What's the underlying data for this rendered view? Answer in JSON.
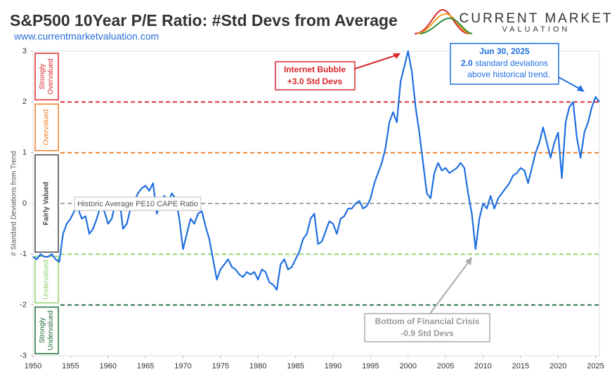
{
  "chart_data": {
    "type": "line",
    "title": "S&P500 10Year P/E Ratio: #Std Devs from Average",
    "subtitle": "www.currentmarketvaluation.com",
    "logo": {
      "line1": "CURRENT MARKET",
      "line2": "VALUATION"
    },
    "y_label": "# Standard Deviations from Trend",
    "xlim": [
      1950,
      2025.5
    ],
    "ylim": [
      -3,
      3
    ],
    "xticks": [
      1950,
      1955,
      1960,
      1965,
      1970,
      1975,
      1980,
      1985,
      1990,
      1995,
      2000,
      2005,
      2010,
      2015,
      2020,
      2025
    ],
    "yticks": [
      -3,
      -2,
      -1,
      0,
      1,
      2,
      3
    ],
    "reference_lines": [
      {
        "value": 2,
        "color": "#d9262b"
      },
      {
        "value": 1,
        "color": "#f07c22"
      },
      {
        "value": 0,
        "color": "#9a9a9a"
      },
      {
        "value": -1,
        "color": "#8fd16a"
      },
      {
        "value": -2,
        "color": "#1e6b3a"
      }
    ],
    "bands": [
      {
        "label": "Strongly Overvalued",
        "range": [
          3,
          2
        ],
        "color": "#d9262b"
      },
      {
        "label": "Overvalued",
        "range": [
          2,
          1
        ],
        "color": "#f07c22"
      },
      {
        "label": "Fairly Valued",
        "range": [
          1,
          -1
        ],
        "color": "#444444"
      },
      {
        "label": "Undervalued",
        "range": [
          -1,
          -2
        ],
        "color": "#8fd16a"
      },
      {
        "label": "Strongly Undervalued",
        "range": [
          -2,
          -3
        ],
        "color": "#1e6b3a"
      }
    ],
    "annotations": {
      "average": "Historic Average PE10 CAPE Ratio",
      "bubble": [
        "Internet Bubble",
        "+3.0 Std Devs"
      ],
      "crisis": [
        "Bottom of Financial Crisis",
        "-0.9 Std Devs"
      ],
      "latest": [
        "Jun 30, 2025",
        "2.0",
        "standard deviations",
        "above historical trend."
      ]
    },
    "series": [
      {
        "name": "Std Devs from Average",
        "color": "#1f6fe0",
        "x": [
          1950,
          1950.5,
          1951,
          1951.5,
          1952,
          1952.5,
          1953,
          1953.5,
          1954,
          1954.5,
          1955,
          1955.5,
          1956,
          1956.5,
          1957,
          1957.5,
          1958,
          1958.5,
          1959,
          1959.5,
          1960,
          1960.5,
          1961,
          1961.5,
          1962,
          1962.5,
          1963,
          1963.5,
          1964,
          1964.5,
          1965,
          1965.5,
          1966,
          1966.5,
          1967,
          1967.5,
          1968,
          1968.5,
          1969,
          1969.5,
          1970,
          1970.5,
          1971,
          1971.5,
          1972,
          1972.5,
          1973,
          1973.5,
          1974,
          1974.5,
          1975,
          1975.5,
          1976,
          1976.5,
          1977,
          1977.5,
          1978,
          1978.5,
          1979,
          1979.5,
          1980,
          1980.5,
          1981,
          1981.5,
          1982,
          1982.5,
          1983,
          1983.5,
          1984,
          1984.5,
          1985,
          1985.5,
          1986,
          1986.5,
          1987,
          1987.5,
          1988,
          1988.5,
          1989,
          1989.5,
          1990,
          1990.5,
          1991,
          1991.5,
          1992,
          1992.5,
          1993,
          1993.5,
          1994,
          1994.5,
          1995,
          1995.5,
          1996,
          1996.5,
          1997,
          1997.5,
          1998,
          1998.5,
          1999,
          1999.5,
          2000,
          2000.5,
          2001,
          2001.5,
          2002,
          2002.5,
          2003,
          2003.5,
          2004,
          2004.5,
          2005,
          2005.5,
          2006,
          2006.5,
          2007,
          2007.5,
          2008,
          2008.5,
          2009,
          2009.5,
          2010,
          2010.5,
          2011,
          2011.5,
          2012,
          2012.5,
          2013,
          2013.5,
          2014,
          2014.5,
          2015,
          2015.5,
          2016,
          2016.5,
          2017,
          2017.5,
          2018,
          2018.5,
          2019,
          2019.5,
          2020,
          2020.5,
          2021,
          2021.5,
          2022,
          2022.5,
          2023,
          2023.5,
          2024,
          2024.5,
          2025,
          2025.5
        ],
        "values": [
          -1.05,
          -1.1,
          -1.0,
          -1.05,
          -1.05,
          -1.0,
          -1.1,
          -1.15,
          -0.6,
          -0.4,
          -0.3,
          -0.15,
          -0.1,
          -0.3,
          -0.25,
          -0.6,
          -0.5,
          -0.3,
          -0.05,
          -0.15,
          -0.4,
          -0.3,
          0.05,
          0.1,
          -0.5,
          -0.4,
          -0.1,
          0.05,
          0.2,
          0.3,
          0.35,
          0.25,
          0.4,
          -0.2,
          0.0,
          0.15,
          0.0,
          0.2,
          0.1,
          -0.3,
          -0.9,
          -0.6,
          -0.3,
          -0.4,
          -0.2,
          -0.15,
          -0.45,
          -0.7,
          -1.1,
          -1.5,
          -1.3,
          -1.2,
          -1.1,
          -1.25,
          -1.3,
          -1.4,
          -1.45,
          -1.35,
          -1.4,
          -1.35,
          -1.5,
          -1.3,
          -1.35,
          -1.55,
          -1.6,
          -1.7,
          -1.2,
          -1.1,
          -1.3,
          -1.25,
          -1.1,
          -0.95,
          -0.7,
          -0.6,
          -0.3,
          -0.2,
          -0.8,
          -0.75,
          -0.55,
          -0.35,
          -0.4,
          -0.6,
          -0.3,
          -0.25,
          -0.1,
          -0.1,
          0.0,
          0.05,
          -0.1,
          -0.05,
          0.1,
          0.4,
          0.6,
          0.8,
          1.1,
          1.6,
          1.8,
          1.6,
          2.4,
          2.7,
          3.0,
          2.6,
          1.9,
          1.4,
          0.8,
          0.2,
          0.1,
          0.6,
          0.8,
          0.65,
          0.7,
          0.6,
          0.65,
          0.7,
          0.8,
          0.7,
          0.2,
          -0.2,
          -0.9,
          -0.3,
          0.0,
          -0.1,
          0.15,
          -0.1,
          0.1,
          0.2,
          0.3,
          0.4,
          0.55,
          0.6,
          0.7,
          0.65,
          0.4,
          0.7,
          1.0,
          1.2,
          1.5,
          1.2,
          0.9,
          1.2,
          1.4,
          0.5,
          1.6,
          1.9,
          2.0,
          1.3,
          0.9,
          1.4,
          1.6,
          1.9,
          2.1,
          2.0
        ]
      }
    ]
  }
}
